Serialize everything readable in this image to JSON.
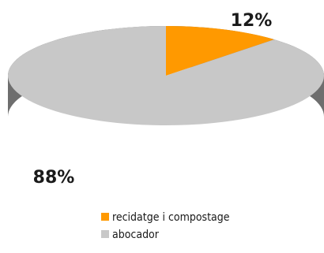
{
  "chart_data": {
    "type": "pie",
    "categories": [
      "recidatge i compostage",
      "abocador"
    ],
    "values": [
      12,
      88
    ],
    "data_labels": [
      "12%",
      "88%"
    ],
    "legend": [
      "recidatge i compostage",
      "abocador"
    ],
    "legend_position": "bottom",
    "colors": [
      "#ff9900",
      "#c8c8c8"
    ],
    "side_colors": [
      "#b86e00",
      "#6e6e6e"
    ],
    "style": "3d"
  }
}
